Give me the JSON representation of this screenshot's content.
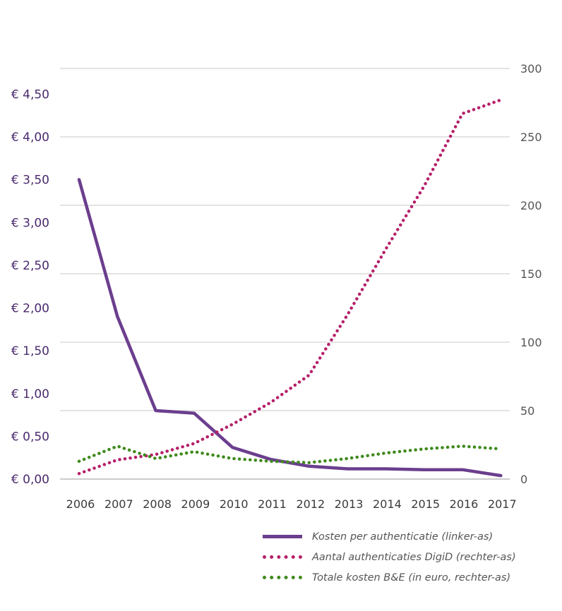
{
  "chart_data": {
    "type": "line",
    "x": [
      "2006",
      "2007",
      "2008",
      "2009",
      "2010",
      "2011",
      "2012",
      "2013",
      "2014",
      "2015",
      "2016",
      "2017"
    ],
    "left_axis": {
      "ylim": [
        0,
        4.8
      ],
      "ticks": [
        0,
        0.5,
        1.0,
        1.5,
        2.0,
        2.5,
        3.0,
        3.5,
        4.0,
        4.5
      ],
      "tick_labels": [
        "€ 0,00",
        "€ 0,50",
        "€ 1,00",
        "€ 1,50",
        "€ 2,00",
        "€ 2,50",
        "€ 3,00",
        "€ 3,50",
        "€ 4,00",
        "€ 4,50"
      ]
    },
    "right_axis": {
      "ylim": [
        0,
        300
      ],
      "ticks": [
        0,
        50,
        100,
        150,
        200,
        250,
        300
      ],
      "tick_labels": [
        "0",
        "50",
        "100",
        "150",
        "200",
        "250",
        "300"
      ]
    },
    "grid": true,
    "legend_position": "bottom-right",
    "series": [
      {
        "name": "Kosten per authenticatie (linker-as)",
        "axis": "left",
        "style": "solid",
        "color": "#6b3e8e",
        "values": [
          3.5,
          1.9,
          0.8,
          0.77,
          0.37,
          0.23,
          0.15,
          0.12,
          0.12,
          0.11,
          0.11,
          0.04
        ]
      },
      {
        "name": "Aantal authenticaties DigiD (rechter-as)",
        "axis": "right",
        "style": "dotted",
        "color": "#b5206a",
        "values": [
          4,
          14,
          18,
          26,
          40,
          56,
          76,
          120,
          168,
          214,
          267,
          277
        ]
      },
      {
        "name": "Totale kosten B&E (in euro, rechter-as)",
        "axis": "right",
        "style": "dotted",
        "color": "#3f8a1c",
        "values": [
          13,
          24,
          15,
          20,
          15,
          13,
          12,
          15,
          19,
          22,
          24,
          22
        ]
      }
    ]
  }
}
